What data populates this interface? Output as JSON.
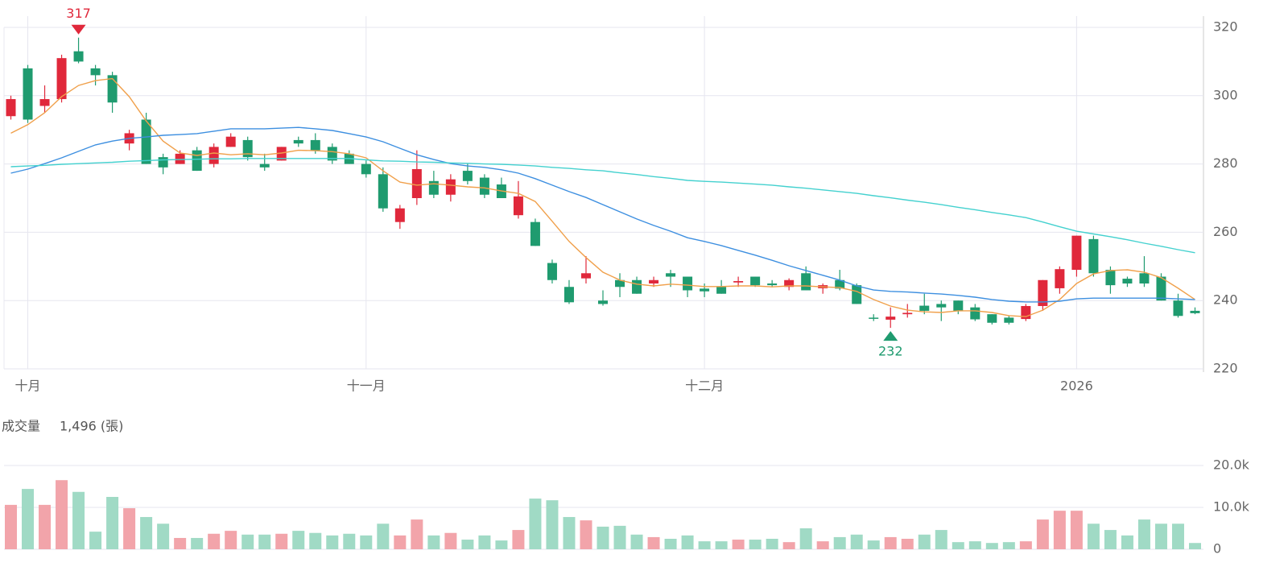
{
  "chart_data": [
    {
      "type": "candlestick",
      "categories": [
        null,
        "十月",
        null,
        null,
        null,
        null,
        null,
        null,
        null,
        null,
        null,
        null,
        null,
        null,
        null,
        null,
        null,
        null,
        null,
        null,
        null,
        "十一月",
        null,
        null,
        null,
        null,
        null,
        null,
        null,
        null,
        null,
        null,
        null,
        null,
        null,
        null,
        null,
        null,
        null,
        null,
        null,
        "十二月",
        null,
        null,
        null,
        null,
        null,
        null,
        null,
        null,
        null,
        null,
        null,
        null,
        null,
        null,
        null,
        null,
        null,
        null,
        null,
        null,
        null,
        "2026",
        null,
        null,
        null,
        null,
        null,
        null,
        null
      ],
      "open": [
        294,
        308,
        297,
        299,
        313,
        308,
        306,
        286,
        293,
        282,
        280,
        284,
        280,
        285,
        287,
        280,
        281,
        287,
        287,
        285,
        283,
        280,
        277,
        263,
        270,
        275,
        271,
        278,
        276,
        274,
        265,
        263,
        251,
        244,
        246.5,
        240,
        246,
        246,
        245,
        248,
        247,
        243.5,
        244,
        245.3,
        247,
        245,
        244,
        248,
        243.6,
        246,
        244.5,
        235,
        234.4,
        236,
        238.5,
        239,
        240,
        238,
        236,
        235,
        234.6,
        238.4,
        243.6,
        249,
        258,
        249,
        246.4,
        248,
        247,
        240,
        237
      ],
      "high": [
        300,
        309,
        303,
        312,
        317,
        309,
        307,
        290,
        295,
        283,
        284,
        285,
        286,
        289,
        288,
        283,
        285,
        288,
        289,
        286,
        284,
        281,
        279,
        268,
        284,
        278,
        277,
        280,
        277,
        276,
        275,
        264,
        252,
        246,
        253,
        243,
        248,
        247,
        247,
        249,
        247,
        245,
        246,
        247,
        247,
        246,
        246.5,
        250,
        245,
        249,
        245,
        236,
        238,
        239,
        242,
        240,
        240,
        239,
        236,
        235.5,
        239,
        246,
        250,
        259,
        259,
        250,
        247,
        253,
        248,
        242,
        238
      ],
      "low": [
        293,
        292,
        295,
        298,
        309.5,
        303,
        295,
        284,
        280,
        277,
        280,
        278,
        279,
        285,
        281,
        278,
        281,
        285,
        283,
        280,
        280,
        276,
        266,
        261,
        268,
        270,
        269,
        274,
        270,
        270,
        264,
        256,
        245,
        239,
        245,
        238.5,
        241,
        242,
        244,
        244,
        241,
        241,
        242,
        244,
        244,
        244,
        243,
        243,
        242,
        243,
        239,
        234,
        232,
        235,
        236,
        234,
        236,
        234,
        233,
        233,
        234,
        237,
        242,
        247,
        247,
        242,
        244,
        244,
        240,
        235,
        236
      ],
      "close": [
        299,
        293,
        299,
        311,
        310,
        306,
        298,
        289,
        280,
        279,
        283,
        278,
        285,
        288,
        282,
        279,
        285,
        286,
        284,
        281,
        280,
        277,
        267,
        267,
        278.5,
        271,
        275.5,
        275,
        271,
        270,
        270.5,
        256,
        246,
        239.5,
        248,
        239,
        244,
        242,
        246,
        247,
        243,
        242.7,
        242,
        245.7,
        244.5,
        244.5,
        246,
        243,
        244.5,
        243.5,
        239,
        234.8,
        235.3,
        236.4,
        237,
        238,
        237,
        234.5,
        233.5,
        233.5,
        238.4,
        246,
        249.2,
        259,
        248,
        244.5,
        245,
        245,
        240,
        235.5,
        236.3
      ],
      "up_color": "#e0283b",
      "down_color": "#1f9b6f",
      "series": [
        {
          "color": "#f0a04b",
          "values": [
            289,
            291.5,
            295,
            299.7,
            303,
            304.4,
            305,
            299.7,
            292.6,
            286.7,
            283.2,
            282.5,
            283.2,
            282.7,
            283,
            282.7,
            283.2,
            284,
            283.9,
            283.6,
            283,
            281.8,
            278,
            274.7,
            273.8,
            274.2,
            273.8,
            273.3,
            273,
            272.1,
            271.4,
            269,
            263.2,
            257.3,
            252.6,
            248.3,
            246,
            244.8,
            244.3,
            244.8,
            244.5,
            244.1,
            244.1,
            244.3,
            244.3,
            244,
            244.3,
            244.3,
            244,
            243.8,
            242.7,
            240.3,
            238.4,
            237.2,
            236.7,
            236.5,
            237,
            237,
            236.5,
            235.6,
            235.3,
            237.2,
            240.3,
            245,
            247.8,
            248.8,
            249,
            248.3,
            246.7,
            243.6,
            240.3
          ]
        },
        {
          "color": "#3d8fe0",
          "values": [
            277.3,
            278.5,
            280.1,
            281.8,
            283.7,
            285.6,
            286.7,
            287.5,
            287.9,
            288.4,
            288.6,
            288.9,
            289.6,
            290.3,
            290.3,
            290.3,
            290.5,
            290.7,
            290.3,
            289.8,
            288.9,
            287.9,
            286.5,
            284.6,
            282.7,
            281.3,
            280.1,
            279.4,
            279,
            278.3,
            277.3,
            275.7,
            273.8,
            271.9,
            270.2,
            268.1,
            266,
            263.9,
            262,
            260.3,
            258.4,
            257.3,
            256.1,
            254.7,
            253.3,
            251.8,
            250.2,
            248.8,
            247.4,
            246,
            244.3,
            243.1,
            242.7,
            242.5,
            242.2,
            241.9,
            241.5,
            241,
            240.3,
            239.8,
            239.6,
            239.6,
            239.8,
            240.5,
            240.7,
            240.7,
            240.7,
            240.7,
            240.7,
            240.5,
            240.3
          ]
        },
        {
          "color": "#44d1cf",
          "values": [
            279.2,
            279.4,
            279.6,
            279.9,
            280.1,
            280.3,
            280.5,
            280.8,
            281,
            281.2,
            281.3,
            281.4,
            281.5,
            281.5,
            281.6,
            281.6,
            281.6,
            281.6,
            281.6,
            281.6,
            281.6,
            281.2,
            280.9,
            280.8,
            280.6,
            280.5,
            280.3,
            280.2,
            280,
            279.9,
            279.7,
            279.4,
            279,
            278.7,
            278.3,
            278,
            277.4,
            276.9,
            276.3,
            275.8,
            275.2,
            274.9,
            274.7,
            274.4,
            274.1,
            273.8,
            273.3,
            272.9,
            272.4,
            271.9,
            271.4,
            270.7,
            270.1,
            269.4,
            268.8,
            268.1,
            267.3,
            266.6,
            265.8,
            265.1,
            264.3,
            263,
            261.6,
            260.3,
            259.5,
            258.7,
            257.8,
            256.8,
            255.9,
            254.9,
            254
          ]
        }
      ],
      "high_marker": 317,
      "low_marker": 232,
      "ylim": [
        220,
        320
      ],
      "yticks": [
        220,
        240,
        260,
        280,
        300,
        320
      ],
      "grid": true
    },
    {
      "type": "bar",
      "title": "成交量",
      "last_value_label": "1,496 (張)",
      "up_color": "#f2a4aa",
      "down_color": "#a0dac5",
      "values": [
        10600,
        14400,
        10600,
        16500,
        13700,
        4200,
        12500,
        9800,
        7700,
        6100,
        2700,
        2700,
        3700,
        4400,
        3500,
        3500,
        3700,
        4400,
        3900,
        3300,
        3700,
        3300,
        6100,
        3300,
        7100,
        3300,
        3900,
        2300,
        3300,
        2100,
        4600,
        12100,
        11700,
        7700,
        6900,
        5400,
        5600,
        3500,
        2900,
        2500,
        3300,
        1900,
        1900,
        2300,
        2300,
        2500,
        1700,
        5000,
        1900,
        2900,
        3500,
        2100,
        2900,
        2500,
        3500,
        4600,
        1700,
        1900,
        1500,
        1700,
        1900,
        7100,
        9200,
        9200,
        6100,
        4600,
        3300,
        7100,
        6100,
        6100,
        1496
      ],
      "ylim": [
        0,
        20000
      ],
      "yticks": [
        0,
        {
          "value": 10000,
          "label": "10.0k"
        },
        {
          "value": 20000,
          "label": "20.0k"
        }
      ],
      "grid": true
    }
  ]
}
